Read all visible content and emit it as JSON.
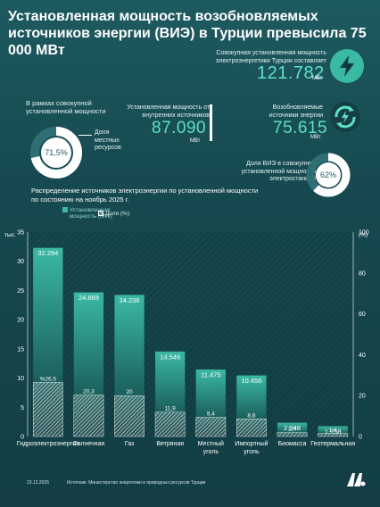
{
  "title": "Установленная мощность возобновляемых источников энергии (ВИЭ) в Турции превысила 75 000 МВт",
  "total": {
    "label": "Совокупная установленная мощность электроэнергетики Турции составляет",
    "value": "121.782",
    "unit": "МВт"
  },
  "domestic": {
    "label": "Установленная мощность от внутренних источников",
    "value": "87.090",
    "unit": "МВт"
  },
  "renewable": {
    "label": "Возобновляемые источники энергии",
    "value": "75.615",
    "unit": "МВт"
  },
  "domestic_share": {
    "label": "В рамках совокупной установленной мощности",
    "percent": "71,5%",
    "percent_value": 71.5,
    "legend": "Доля местных ресурсов"
  },
  "renewable_share": {
    "label": "Доля ВИЭ в совокупной установленной мощности электростанций",
    "percent": "62%",
    "percent_value": 62
  },
  "colors": {
    "accent": "#5ee0c4",
    "bar_top": "#3ab9a3",
    "bar_bottom": "#0e3a3e",
    "background": "#174b51"
  },
  "icons": [
    "lightning-bolt-icon",
    "recycle-lightning-icon"
  ],
  "chart_data": {
    "type": "bar",
    "title": "Распределение источников электроэнергии по установленной мощности по состоянию на ноябрь 2025 г.",
    "categories": [
      "Гидроэлектроэнергия",
      "Солнечная",
      "Газ",
      "Ветряная",
      "Местный уголь",
      "Импортный уголь",
      "Биомасса",
      "Геотермальная"
    ],
    "series": [
      {
        "name": "Установленная мощность (MW)",
        "values": [
          32294,
          24669,
          24236,
          14546,
          11475,
          10456,
          2348,
          1758
        ],
        "labels": [
          "32.294",
          "24.669",
          "24.236",
          "14.546",
          "11.475",
          "10.456",
          "2.348",
          "1.758"
        ]
      },
      {
        "name": "Доля (%)",
        "values": [
          26.5,
          20.3,
          20,
          11.9,
          9.4,
          8.6,
          1.9,
          1.4
        ],
        "labels": [
          "%26,5",
          "20,3",
          "20",
          "11,9",
          "9,4",
          "8,6",
          "1,9",
          "1,4"
        ]
      }
    ],
    "ylabel_left": "тыс.",
    "ylabel_right": "(%)",
    "ylim_left": [
      0,
      35
    ],
    "ylim_right": [
      0,
      100
    ],
    "yticks_left": [
      0,
      5,
      10,
      15,
      20,
      25,
      30,
      35
    ],
    "yticks_right": [
      0,
      20,
      40,
      60,
      80,
      100
    ],
    "legend_position": "top-left"
  },
  "footer": {
    "date": "23.12.2025",
    "source": "Источник: Министерство энергетики и природных ресурсов Турции",
    "logo": "AA"
  }
}
